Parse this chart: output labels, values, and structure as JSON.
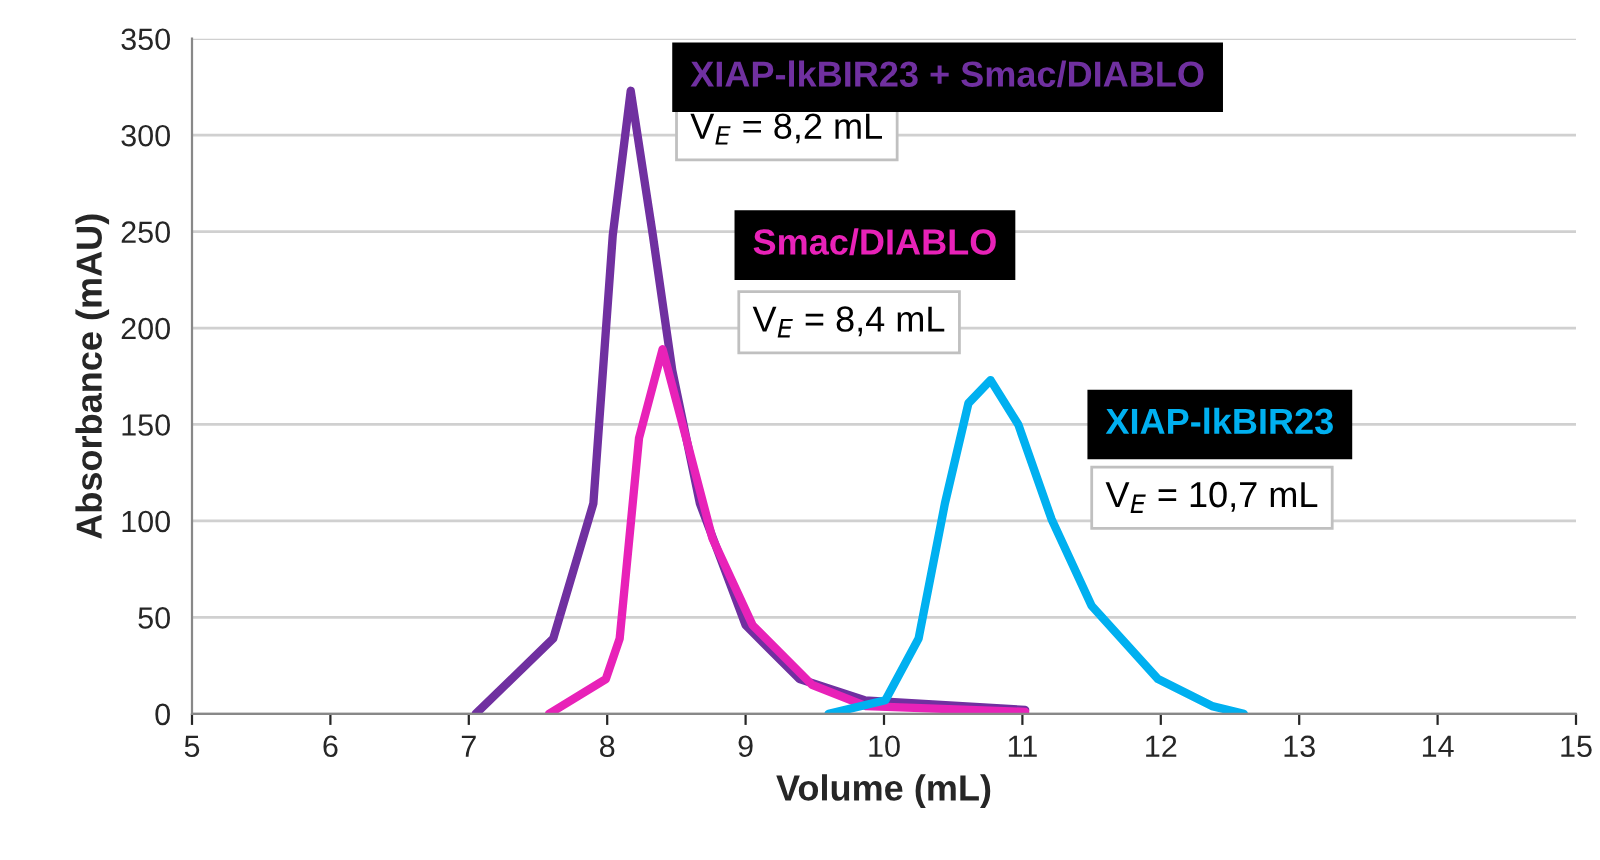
{
  "chart_data": {
    "type": "line",
    "xlabel": "Volume (mL)",
    "ylabel": "Absorbance (mAU)",
    "xlim": [
      5,
      15
    ],
    "xticks": [
      5,
      6,
      7,
      8,
      9,
      10,
      11,
      12,
      13,
      14,
      15
    ],
    "ylim": [
      0,
      350
    ],
    "yticks": [
      0,
      50,
      100,
      150,
      200,
      250,
      300,
      350
    ],
    "grid": "y",
    "legend": false,
    "series": [
      {
        "name": "XIAP-lkBIR23 + Smac/DIABLO",
        "color": "#7030a0",
        "x": [
          7.05,
          7.61,
          7.9,
          8.04,
          8.17,
          8.33,
          8.47,
          8.67,
          9.0,
          9.39,
          9.86,
          11.02
        ],
        "values": [
          0,
          39,
          109,
          248,
          323,
          248,
          178,
          109,
          46,
          18,
          7,
          2
        ]
      },
      {
        "name": "Smac/DIABLO",
        "color": "#e822b8",
        "x": [
          7.58,
          7.99,
          8.09,
          8.23,
          8.4,
          8.57,
          8.76,
          9.05,
          9.48,
          9.87,
          11.02
        ],
        "values": [
          0,
          18,
          39,
          143,
          189,
          143,
          91,
          46,
          15,
          4,
          1
        ]
      },
      {
        "name": "XIAP-lkBIR23",
        "color": "#00b0f0",
        "x": [
          9.6,
          10.01,
          10.25,
          10.44,
          10.61,
          10.77,
          10.97,
          11.21,
          11.5,
          11.98,
          12.37,
          12.6
        ],
        "values": [
          0,
          7,
          39,
          109,
          161,
          173,
          150,
          101,
          56,
          18,
          4,
          0
        ]
      }
    ],
    "annotations": [
      "V$_{E}$ = 8,2 mL",
      "V$_{E}$ = 8,4 mL",
      "V$_{E}$ = 10,7 mL"
    ]
  }
}
